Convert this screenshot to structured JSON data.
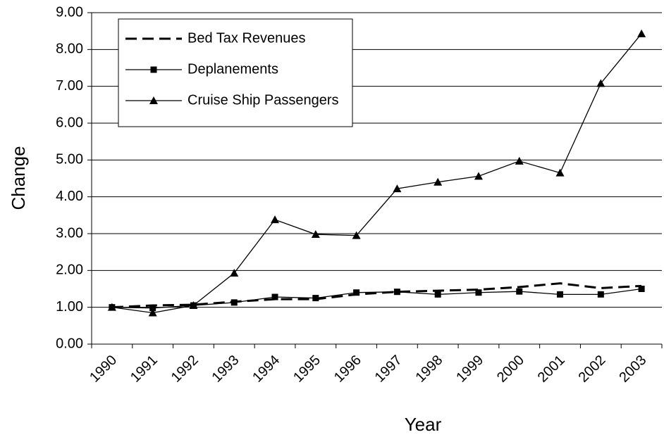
{
  "chart_data": {
    "type": "line",
    "x_label": "Year",
    "y_label": "Change",
    "categories": [
      "1990",
      "1991",
      "1992",
      "1993",
      "1994",
      "1995",
      "1996",
      "1997",
      "1998",
      "1999",
      "2000",
      "2001",
      "2002",
      "2003"
    ],
    "series": [
      {
        "name": "Bed Tax Revenues",
        "color": "#000000",
        "dash": true,
        "marker": "none",
        "values": [
          1.0,
          1.05,
          1.07,
          1.15,
          1.22,
          1.22,
          1.35,
          1.42,
          1.45,
          1.48,
          1.55,
          1.65,
          1.52,
          1.58
        ]
      },
      {
        "name": "Deplanements",
        "color": "#000000",
        "dash": false,
        "marker": "square",
        "values": [
          1.0,
          0.98,
          1.05,
          1.13,
          1.28,
          1.25,
          1.4,
          1.42,
          1.35,
          1.4,
          1.43,
          1.35,
          1.35,
          1.5
        ]
      },
      {
        "name": "Cruise Ship Passengers",
        "color": "#000000",
        "dash": false,
        "marker": "triangle",
        "values": [
          1.0,
          0.85,
          1.05,
          1.93,
          3.38,
          2.98,
          2.95,
          4.22,
          4.4,
          4.56,
          4.97,
          4.65,
          7.08,
          8.43
        ]
      }
    ],
    "ylim": [
      0,
      9
    ],
    "yticks": [
      {
        "value": 0,
        "label": "0.00"
      },
      {
        "value": 1,
        "label": "1.00"
      },
      {
        "value": 2,
        "label": "2.00"
      },
      {
        "value": 3,
        "label": "3.00"
      },
      {
        "value": 4,
        "label": "4.00"
      },
      {
        "value": 5,
        "label": "5.00"
      },
      {
        "value": 6,
        "label": "6.00"
      },
      {
        "value": 7,
        "label": "7.00"
      },
      {
        "value": 8,
        "label": "8.00"
      },
      {
        "value": 9,
        "label": "9.00"
      }
    ],
    "grid": true,
    "legend": "upper left"
  }
}
